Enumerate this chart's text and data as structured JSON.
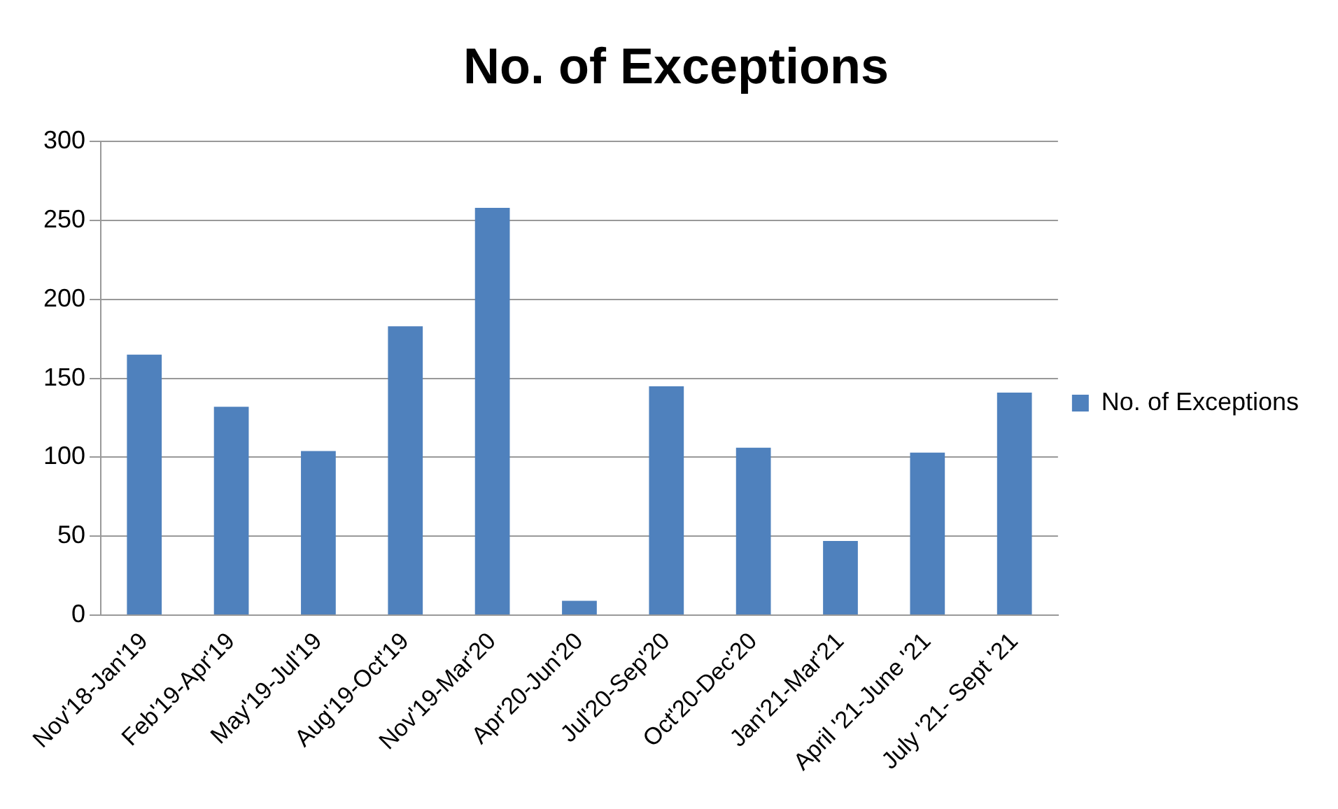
{
  "chart_data": {
    "type": "bar",
    "title": "No. of Exceptions",
    "categories": [
      "Nov'18-Jan'19",
      "Feb'19-Apr'19",
      "May'19-Jul'19",
      "Aug'19-Oct'19",
      "Nov'19-Mar'20",
      "Apr'20-Jun'20",
      "Jul'20-Sep'20",
      "Oct'20-Dec'20",
      "Jan'21-Mar'21",
      "April '21-June '21",
      "July '21- Sept '21"
    ],
    "series": [
      {
        "name": "No. of Exceptions",
        "color": "#4f81bd",
        "values": [
          165,
          132,
          104,
          183,
          258,
          9,
          145,
          106,
          47,
          103,
          141
        ]
      }
    ],
    "ylim": [
      0,
      300
    ],
    "yticks": [
      0,
      50,
      100,
      150,
      200,
      250,
      300
    ],
    "grid": "y",
    "legend": "right"
  }
}
